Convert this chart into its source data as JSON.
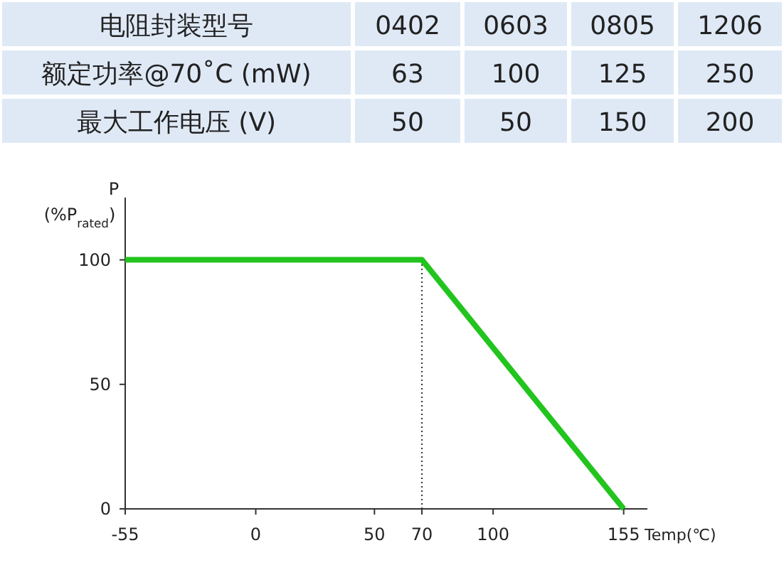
{
  "chart_data": [
    {
      "type": "other",
      "xlabel": "电阻封装型号",
      "categories": [
        "0402",
        "0603",
        "0805",
        "1206"
      ],
      "series": [
        {
          "name": "额定功率@70˚C (mW)",
          "values": [
            63,
            100,
            125,
            250
          ]
        },
        {
          "name": "最大工作电压 (V)",
          "values": [
            50,
            50,
            150,
            200
          ]
        }
      ],
      "data_labels": true,
      "color": "#dfe9f6"
    },
    {
      "type": "line",
      "x": [
        -55,
        70,
        155
      ],
      "values": [
        100,
        100,
        0
      ],
      "color": "#22c41e",
      "xlim": [
        -55,
        165
      ],
      "ylim": [
        0,
        125
      ],
      "xticks": [
        -55,
        0,
        50,
        70,
        100,
        155
      ],
      "yticks": [
        0,
        50,
        100
      ],
      "xlabel": "Temp(℃)",
      "ylabel": "P (%P$_{rated}$)",
      "ref_lines": [
        {
          "axis": "x",
          "value": 70,
          "line_style": "dotted"
        }
      ],
      "marker": "none",
      "line_style": "solid"
    }
  ]
}
